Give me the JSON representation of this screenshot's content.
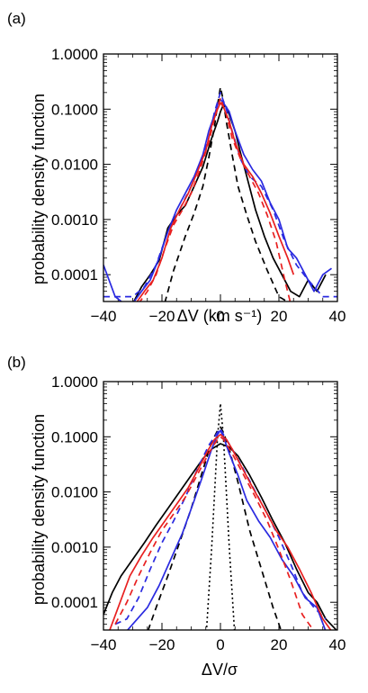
{
  "panels": [
    {
      "label": "(a)"
    },
    {
      "label": "(b)"
    }
  ],
  "chart_data": [
    {
      "type": "line",
      "panel": "(a)",
      "ylabel": "probability density function",
      "xlabel": "ΔV (km s⁻¹)",
      "xlim": [
        -40,
        40
      ],
      "ylim": [
        2e-05,
        1.0
      ],
      "yscale": "log",
      "xticks": [
        "−40",
        "−20",
        "0",
        "20",
        "40"
      ],
      "yticks": [
        "0.0001",
        "0.0010",
        "0.0100",
        "0.1000",
        "1.0000"
      ],
      "series": [
        {
          "color": "#000000",
          "style": "solid",
          "x": [
            -30,
            -27,
            -24,
            -21,
            -18,
            -15,
            -12,
            -9,
            -6,
            -3,
            -1,
            0,
            1,
            2,
            3,
            5,
            7,
            9,
            12,
            15,
            18,
            21,
            24,
            27,
            30,
            33,
            36
          ],
          "y": [
            3e-05,
            6e-05,
            0.0001,
            0.00018,
            0.0007,
            0.0012,
            0.0018,
            0.004,
            0.009,
            0.03,
            0.06,
            0.09,
            0.12,
            0.11,
            0.08,
            0.04,
            0.015,
            0.006,
            0.0015,
            0.0005,
            0.0002,
            0.0001,
            5e-05,
            4e-05,
            8e-05,
            5e-05,
            0.0001
          ]
        },
        {
          "color": "#000000",
          "style": "dashed",
          "x": [
            -20,
            -16,
            -12,
            -9,
            -6,
            -4,
            -2,
            -1,
            0,
            1,
            2,
            4,
            6,
            9,
            12,
            16,
            20,
            24,
            28
          ],
          "y": [
            2e-05,
            0.00012,
            0.0005,
            0.0013,
            0.004,
            0.013,
            0.05,
            0.12,
            0.25,
            0.14,
            0.06,
            0.015,
            0.004,
            0.0012,
            0.0004,
            0.00012,
            4e-05,
            3e-05,
            2e-05
          ]
        },
        {
          "color": "#2a2ae0",
          "style": "solid",
          "x": [
            -40,
            -36,
            -33,
            -30,
            -27,
            -24,
            -21,
            -18,
            -15,
            -12,
            -9,
            -6,
            -4,
            -2,
            -1,
            0,
            1,
            3,
            5,
            8,
            11,
            14,
            17,
            20,
            23,
            26,
            29,
            32,
            35,
            38
          ],
          "y": [
            0.00015,
            4e-05,
            3e-05,
            3e-05,
            5e-05,
            8e-05,
            0.0002,
            0.0006,
            0.0015,
            0.003,
            0.006,
            0.015,
            0.04,
            0.08,
            0.12,
            0.15,
            0.13,
            0.09,
            0.04,
            0.015,
            0.008,
            0.005,
            0.002,
            0.001,
            0.0003,
            0.0002,
            0.0001,
            5e-05,
            0.0001,
            0.00013
          ]
        },
        {
          "color": "#2a2ae0",
          "style": "dashed",
          "x": [
            -40,
            -35,
            -30,
            -26,
            -22,
            -18,
            -14,
            -10,
            -7,
            -4,
            -2,
            0,
            2,
            4,
            7,
            10,
            14,
            18,
            22,
            26,
            30,
            35,
            40
          ],
          "y": [
            4e-05,
            4e-05,
            4e-05,
            6e-05,
            0.00015,
            0.0006,
            0.0015,
            0.004,
            0.01,
            0.03,
            0.09,
            0.2,
            0.1,
            0.04,
            0.012,
            0.006,
            0.004,
            0.0015,
            0.0004,
            0.00015,
            8e-05,
            4e-05,
            4e-05
          ]
        },
        {
          "color": "#e82020",
          "style": "solid",
          "x": [
            -29,
            -26,
            -23,
            -20,
            -17,
            -14,
            -11,
            -8,
            -5,
            -3,
            -1,
            0,
            1,
            3,
            5,
            8,
            11,
            14,
            17,
            20,
            23,
            25
          ],
          "y": [
            3e-05,
            5e-05,
            8e-05,
            0.0002,
            0.0007,
            0.0015,
            0.003,
            0.007,
            0.018,
            0.05,
            0.1,
            0.13,
            0.11,
            0.06,
            0.025,
            0.01,
            0.006,
            0.003,
            0.0013,
            0.0005,
            0.0002,
            0.0001
          ]
        },
        {
          "color": "#e82020",
          "style": "dashed",
          "x": [
            -28,
            -25,
            -22,
            -19,
            -16,
            -13,
            -10,
            -7,
            -4,
            -2,
            0,
            2,
            4,
            7,
            10,
            13,
            16,
            19,
            22,
            24
          ],
          "y": [
            3e-05,
            5e-05,
            0.0001,
            0.0003,
            0.0008,
            0.0015,
            0.003,
            0.008,
            0.025,
            0.07,
            0.16,
            0.08,
            0.03,
            0.012,
            0.006,
            0.003,
            0.0012,
            0.0004,
            8e-05,
            3e-05
          ]
        }
      ]
    },
    {
      "type": "line",
      "panel": "(b)",
      "ylabel": "probability density function",
      "xlabel": "ΔV/σ",
      "xlim": [
        -40,
        40
      ],
      "ylim": [
        2e-05,
        1.0
      ],
      "yscale": "log",
      "xticks": [
        "−40",
        "−20",
        "0",
        "20",
        "40"
      ],
      "yticks": [
        "0.0001",
        "0.0010",
        "0.0100",
        "0.1000",
        "1.0000"
      ],
      "series": [
        {
          "color": "#000000",
          "style": "solid",
          "x": [
            -40,
            -37,
            -34,
            -30,
            -26,
            -22,
            -18,
            -14,
            -10,
            -6,
            -3,
            0,
            3,
            6,
            10,
            14,
            18,
            22,
            26,
            30,
            33,
            36,
            40
          ],
          "y": [
            6e-05,
            0.00015,
            0.0003,
            0.0006,
            0.0012,
            0.0025,
            0.005,
            0.01,
            0.02,
            0.04,
            0.06,
            0.075,
            0.065,
            0.045,
            0.02,
            0.008,
            0.003,
            0.0012,
            0.0004,
            0.00015,
            0.0001,
            5e-05,
            3e-05
          ]
        },
        {
          "color": "#000000",
          "style": "dashed",
          "x": [
            -26,
            -22,
            -18,
            -14,
            -10,
            -6,
            -3,
            -1,
            0,
            1,
            3,
            6,
            10,
            14,
            18,
            22
          ],
          "y": [
            2e-05,
            8e-05,
            0.0003,
            0.0012,
            0.005,
            0.025,
            0.08,
            0.13,
            0.15,
            0.12,
            0.06,
            0.015,
            0.002,
            0.0004,
            8e-05,
            2e-05
          ]
        },
        {
          "color": "#000000",
          "style": "dotted",
          "x": [
            -5,
            -3,
            -1,
            0,
            1,
            3,
            5
          ],
          "y": [
            2e-05,
            0.001,
            0.1,
            0.4,
            0.1,
            0.001,
            2e-05
          ]
        },
        {
          "color": "#2a2ae0",
          "style": "solid",
          "x": [
            -35,
            -30,
            -25,
            -21,
            -17,
            -13,
            -9,
            -6,
            -3,
            -1,
            0,
            1,
            3,
            6,
            9,
            13,
            17,
            21,
            25,
            29,
            33,
            36
          ],
          "y": [
            2e-05,
            4e-05,
            8e-05,
            0.0002,
            0.0006,
            0.0018,
            0.007,
            0.02,
            0.06,
            0.11,
            0.13,
            0.1,
            0.05,
            0.02,
            0.007,
            0.003,
            0.0015,
            0.0006,
            0.0003,
            0.00012,
            8e-05,
            3e-05
          ]
        },
        {
          "color": "#2a2ae0",
          "style": "dashed",
          "x": [
            -36,
            -32,
            -28,
            -24,
            -20,
            -16,
            -12,
            -8,
            -4,
            -1,
            0,
            1,
            4,
            8,
            12,
            16,
            20,
            24,
            28,
            32,
            36
          ],
          "y": [
            4e-05,
            5e-05,
            0.00012,
            0.0004,
            0.0012,
            0.003,
            0.008,
            0.025,
            0.07,
            0.12,
            0.14,
            0.11,
            0.06,
            0.025,
            0.01,
            0.004,
            0.0015,
            0.0005,
            0.00015,
            8e-05,
            5e-05
          ]
        },
        {
          "color": "#e82020",
          "style": "solid",
          "x": [
            -38,
            -35,
            -31,
            -27,
            -23,
            -19,
            -15,
            -11,
            -7,
            -4,
            -2,
            0,
            2,
            4,
            7,
            11,
            15,
            19,
            23,
            27,
            31,
            35,
            38
          ],
          "y": [
            3e-05,
            8e-05,
            0.0003,
            0.0007,
            0.0015,
            0.003,
            0.006,
            0.012,
            0.03,
            0.06,
            0.09,
            0.11,
            0.09,
            0.06,
            0.03,
            0.012,
            0.005,
            0.002,
            0.001,
            0.0004,
            0.00015,
            5e-05,
            3e-05
          ]
        },
        {
          "color": "#e82020",
          "style": "dashed",
          "x": [
            -36,
            -32,
            -28,
            -24,
            -20,
            -16,
            -12,
            -8,
            -4,
            -1,
            0,
            1,
            4,
            8,
            12,
            16,
            20,
            24,
            28,
            32
          ],
          "y": [
            4e-05,
            0.0001,
            0.0003,
            0.0008,
            0.002,
            0.004,
            0.008,
            0.02,
            0.05,
            0.09,
            0.1,
            0.09,
            0.05,
            0.02,
            0.008,
            0.003,
            0.0009,
            0.00025,
            6e-05,
            3e-05
          ]
        }
      ]
    }
  ]
}
